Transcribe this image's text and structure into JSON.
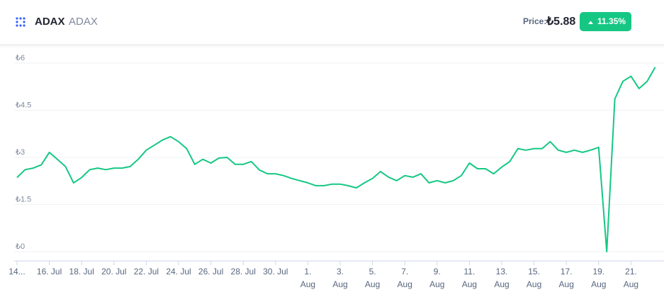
{
  "header": {
    "symbol": "ADAX",
    "name": "ADAX",
    "price_label": "Price:",
    "price": "₺5.88",
    "change": "11.35%"
  },
  "chart_data": {
    "type": "line",
    "color": "#16c784",
    "grid": true,
    "values": [
      2.36,
      2.61,
      2.66,
      2.76,
      3.16,
      2.94,
      2.71,
      2.19,
      2.36,
      2.61,
      2.66,
      2.61,
      2.66,
      2.66,
      2.71,
      2.94,
      3.23,
      3.39,
      3.55,
      3.66,
      3.5,
      3.28,
      2.78,
      2.94,
      2.82,
      2.98,
      3.0,
      2.78,
      2.78,
      2.87,
      2.6,
      2.48,
      2.48,
      2.42,
      2.33,
      2.26,
      2.19,
      2.1,
      2.1,
      2.15,
      2.15,
      2.1,
      2.03,
      2.19,
      2.33,
      2.55,
      2.37,
      2.26,
      2.42,
      2.37,
      2.48,
      2.19,
      2.26,
      2.19,
      2.26,
      2.42,
      2.82,
      2.64,
      2.64,
      2.48,
      2.69,
      2.87,
      3.28,
      3.23,
      3.28,
      3.28,
      3.5,
      3.23,
      3.16,
      3.23,
      3.16,
      3.23,
      3.32,
      0,
      4.86,
      5.42,
      5.58,
      5.19,
      5.42,
      5.87
    ],
    "xlim": [
      0,
      79
    ],
    "xticks": [
      {
        "value": 0,
        "label": [
          "14..."
        ]
      },
      {
        "value": 4,
        "label": [
          "16. Jul"
        ]
      },
      {
        "value": 8,
        "label": [
          "18. Jul"
        ]
      },
      {
        "value": 12,
        "label": [
          "20. Jul"
        ]
      },
      {
        "value": 16,
        "label": [
          "22. Jul"
        ]
      },
      {
        "value": 20,
        "label": [
          "24. Jul"
        ]
      },
      {
        "value": 24,
        "label": [
          "26. Jul"
        ]
      },
      {
        "value": 28,
        "label": [
          "28. Jul"
        ]
      },
      {
        "value": 32,
        "label": [
          "30. Jul"
        ]
      },
      {
        "value": 36,
        "label": [
          "1.",
          "Aug"
        ]
      },
      {
        "value": 40,
        "label": [
          "3.",
          "Aug"
        ]
      },
      {
        "value": 44,
        "label": [
          "5.",
          "Aug"
        ]
      },
      {
        "value": 48,
        "label": [
          "7.",
          "Aug"
        ]
      },
      {
        "value": 52,
        "label": [
          "9.",
          "Aug"
        ]
      },
      {
        "value": 56,
        "label": [
          "11.",
          "Aug"
        ]
      },
      {
        "value": 60,
        "label": [
          "13.",
          "Aug"
        ]
      },
      {
        "value": 64,
        "label": [
          "15.",
          "Aug"
        ]
      },
      {
        "value": 68,
        "label": [
          "17.",
          "Aug"
        ]
      },
      {
        "value": 72,
        "label": [
          "19.",
          "Aug"
        ]
      },
      {
        "value": 76,
        "label": [
          "21.",
          "Aug"
        ]
      }
    ],
    "ylim": [
      0,
      6
    ],
    "yticks": [
      {
        "value": 0,
        "label": "₺0"
      },
      {
        "value": 1.5,
        "label": "₺1.5"
      },
      {
        "value": 3,
        "label": "₺3"
      },
      {
        "value": 4.5,
        "label": "₺4.5"
      },
      {
        "value": 6,
        "label": "₺6"
      }
    ]
  }
}
